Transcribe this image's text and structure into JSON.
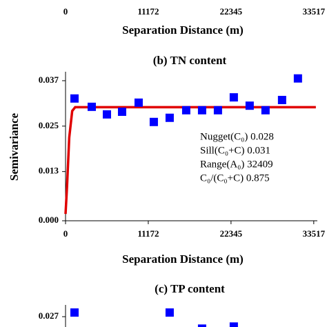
{
  "chart_data": [
    {
      "type": "scatter",
      "xlabel": "Separation Distance (m)",
      "xlim": [
        0,
        34000
      ],
      "xticks": [
        0,
        11172,
        22345,
        33517
      ]
    },
    {
      "type": "scatter",
      "title": "(b) TN content",
      "xlabel": "Separation Distance (m)",
      "ylabel": "Semivariance",
      "xlim": [
        0,
        34000
      ],
      "xticks": [
        0,
        11172,
        22345,
        33517
      ],
      "ylim": [
        0,
        0.039
      ],
      "yticks": [
        {
          "value": 0,
          "label": "0.000"
        },
        0.013,
        0.025,
        0.037
      ],
      "series": [
        {
          "name": "Observed",
          "kind": "points",
          "color": "#0000ff",
          "x": [
            1210,
            3538,
            5587,
            7635,
            9870,
            11918,
            14060,
            16294,
            18436,
            20577,
            22719,
            24860,
            27002,
            29236,
            31378
          ],
          "values": [
            0.0323,
            0.0301,
            0.0281,
            0.0288,
            0.0312,
            0.0261,
            0.0272,
            0.0292,
            0.0292,
            0.0292,
            0.0326,
            0.0304,
            0.0292,
            0.0319,
            0.0376
          ]
        },
        {
          "name": "Model",
          "kind": "line",
          "color": "#e00000",
          "x": [
            0,
            200,
            500,
            900,
            1300,
            33800
          ],
          "values": [
            0.0018,
            0.009,
            0.022,
            0.029,
            0.03,
            0.03
          ]
        }
      ],
      "annotations": [
        "Nugget(C₀)  0.028",
        "Sill(C₀+C)  0.031",
        "Range(A₀)  32409",
        "C₀/(C₀+C)  0.875"
      ]
    },
    {
      "type": "scatter",
      "title": "(c) TP content",
      "xlim": [
        0,
        34000
      ],
      "ylim": [
        0,
        0.029
      ],
      "yticks": [
        0.027
      ],
      "series": [
        {
          "name": "Observed",
          "kind": "points",
          "color": "#0000ff",
          "x": [
            1210,
            14060,
            18436,
            22719
          ],
          "values": [
            0.0278,
            0.0278,
            0.0247,
            0.0251
          ]
        }
      ]
    }
  ]
}
